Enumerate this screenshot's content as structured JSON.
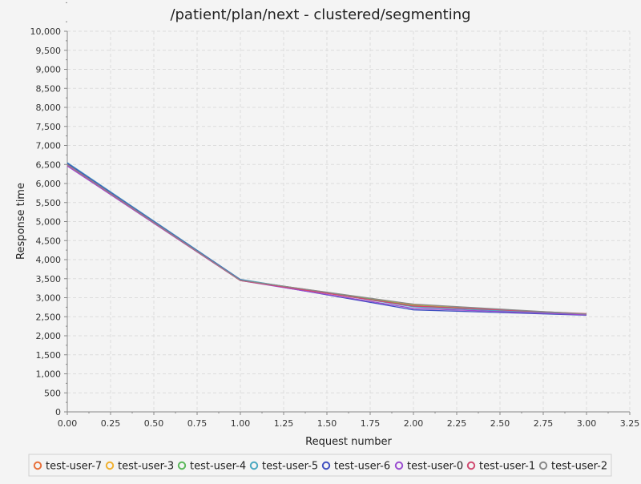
{
  "chart_data": {
    "type": "line",
    "title": "/patient/plan/next - clustered/segmenting",
    "xlabel": "Request number",
    "ylabel": "Response time",
    "xlim": [
      0,
      3.25
    ],
    "ylim": [
      0,
      10000
    ],
    "x_ticks": [
      "0.00",
      "0.25",
      "0.50",
      "0.75",
      "1.00",
      "1.25",
      "1.50",
      "1.75",
      "2.00",
      "2.25",
      "2.50",
      "2.75",
      "3.00",
      "3.25"
    ],
    "y_ticks": [
      "0",
      "500",
      "1,000",
      "1,500",
      "2,000",
      "2,500",
      "3,000",
      "3,500",
      "4,000",
      "4,500",
      "5,000",
      "5,500",
      "6,000",
      "6,500",
      "7,000",
      "7,500",
      "8,000",
      "8,500",
      "9,000",
      "9,500",
      "10,000"
    ],
    "grid": true,
    "legend_position": "bottom",
    "x": [
      0,
      1,
      2,
      3
    ],
    "series": [
      {
        "name": "test-user-7",
        "color": "#e8703a",
        "values": [
          6510,
          3460,
          2820,
          2560
        ]
      },
      {
        "name": "test-user-3",
        "color": "#f0b030",
        "values": [
          6500,
          3450,
          2800,
          2570
        ]
      },
      {
        "name": "test-user-4",
        "color": "#5cb85c",
        "values": [
          6520,
          3470,
          2790,
          2560
        ]
      },
      {
        "name": "test-user-5",
        "color": "#4aa8c0",
        "values": [
          6550,
          3480,
          2760,
          2550
        ]
      },
      {
        "name": "test-user-6",
        "color": "#4050c0",
        "values": [
          6530,
          3470,
          2680,
          2540
        ]
      },
      {
        "name": "test-user-0",
        "color": "#9a4cd0",
        "values": [
          6460,
          3450,
          2720,
          2550
        ]
      },
      {
        "name": "test-user-1",
        "color": "#d04a70",
        "values": [
          6490,
          3450,
          2780,
          2580
        ]
      },
      {
        "name": "test-user-2",
        "color": "#8a8a8a",
        "values": [
          6500,
          3460,
          2830,
          2570
        ]
      }
    ]
  }
}
